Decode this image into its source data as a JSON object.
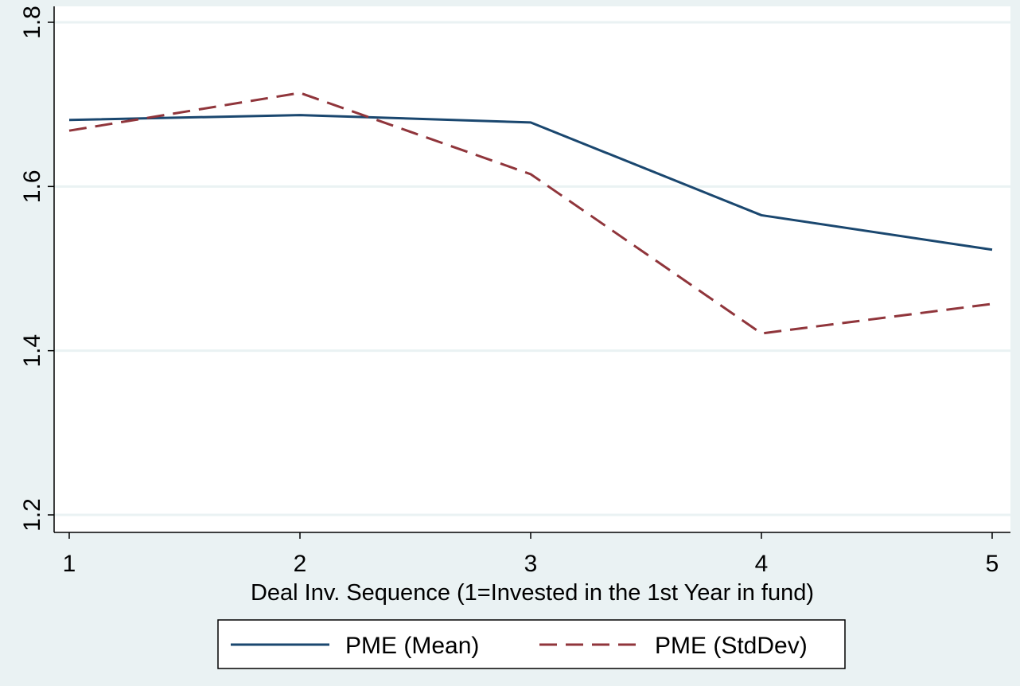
{
  "chart_data": {
    "type": "line",
    "title": "",
    "xlabel": "Deal Inv. Sequence (1=Invested in the 1st Year in fund)",
    "ylabel": "",
    "x": [
      1,
      2,
      3,
      4,
      5
    ],
    "xticks": [
      "1",
      "2",
      "3",
      "4",
      "5"
    ],
    "yticks": [
      "1.2",
      "1.4",
      "1.6",
      "1.8"
    ],
    "xlim": [
      1,
      5
    ],
    "ylim": [
      1.2,
      1.8
    ],
    "grid": true,
    "legend_position": "bottom",
    "series": [
      {
        "name": "PME (Mean)",
        "values": [
          1.681,
          1.687,
          1.678,
          1.565,
          1.523
        ],
        "color": "#1a476f",
        "style": "solid"
      },
      {
        "name": "PME (StdDev)",
        "values": [
          1.668,
          1.714,
          1.615,
          1.421,
          1.457
        ],
        "color": "#90353b",
        "style": "dashed"
      }
    ]
  }
}
